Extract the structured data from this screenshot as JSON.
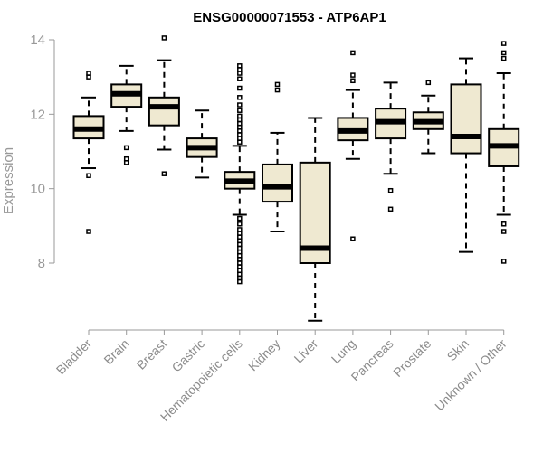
{
  "chart_data": {
    "type": "boxplot",
    "title": "ENSG00000071553 - ATP6AP1",
    "xlabel": "",
    "ylabel": "Expression",
    "ylim": [
      6.2,
      14.3
    ],
    "yticks": [
      8,
      10,
      12,
      14
    ],
    "box_fill": "#efe9d1",
    "box_stroke": "#000000",
    "categories": [
      "Bladder",
      "Brain",
      "Breast",
      "Gastric",
      "Hematopoietic cells",
      "Kidney",
      "Liver",
      "Lung",
      "Pancreas",
      "Prostate",
      "Skin",
      "Unknown / Other"
    ],
    "boxes": [
      {
        "q1": 11.35,
        "median": 11.6,
        "q3": 11.95,
        "whisker_low": 10.55,
        "whisker_high": 12.45,
        "outliers": [
          13.1,
          13.0,
          10.35,
          8.85
        ]
      },
      {
        "q1": 12.2,
        "median": 12.55,
        "q3": 12.8,
        "whisker_low": 11.55,
        "whisker_high": 13.3,
        "outliers": [
          11.1,
          10.8,
          10.7
        ]
      },
      {
        "q1": 11.7,
        "median": 12.2,
        "q3": 12.45,
        "whisker_low": 11.05,
        "whisker_high": 13.45,
        "outliers": [
          14.05,
          10.4
        ]
      },
      {
        "q1": 10.85,
        "median": 11.1,
        "q3": 11.35,
        "whisker_low": 10.3,
        "whisker_high": 12.1,
        "outliers": []
      },
      {
        "q1": 10.0,
        "median": 10.2,
        "q3": 10.45,
        "whisker_low": 9.3,
        "whisker_high": 11.15,
        "outliers": [
          13.3,
          13.2,
          13.1,
          12.95,
          12.7,
          12.45,
          12.25,
          12.1,
          11.95,
          11.85,
          11.75,
          11.65,
          11.55,
          11.45,
          11.35,
          11.25,
          9.2,
          9.05,
          8.9,
          8.8,
          8.7,
          8.6,
          8.5,
          8.4,
          8.3,
          8.2,
          8.1,
          8.0,
          7.9,
          7.8,
          7.7,
          7.6,
          7.5
        ]
      },
      {
        "q1": 9.65,
        "median": 10.05,
        "q3": 10.65,
        "whisker_low": 8.85,
        "whisker_high": 11.5,
        "outliers": [
          12.8,
          12.65
        ]
      },
      {
        "q1": 8.0,
        "median": 8.4,
        "q3": 10.7,
        "whisker_low": 6.45,
        "whisker_high": 11.9,
        "outliers": []
      },
      {
        "q1": 11.3,
        "median": 11.55,
        "q3": 11.9,
        "whisker_low": 10.8,
        "whisker_high": 12.65,
        "outliers": [
          13.65,
          13.05,
          12.9,
          8.65
        ]
      },
      {
        "q1": 11.35,
        "median": 11.8,
        "q3": 12.15,
        "whisker_low": 10.4,
        "whisker_high": 12.85,
        "outliers": [
          9.95,
          9.45
        ]
      },
      {
        "q1": 11.6,
        "median": 11.8,
        "q3": 12.05,
        "whisker_low": 10.95,
        "whisker_high": 12.5,
        "outliers": [
          12.85
        ]
      },
      {
        "q1": 10.95,
        "median": 11.4,
        "q3": 12.8,
        "whisker_low": 8.3,
        "whisker_high": 13.5,
        "outliers": []
      },
      {
        "q1": 10.6,
        "median": 11.15,
        "q3": 11.6,
        "whisker_low": 9.3,
        "whisker_high": 13.1,
        "outliers": [
          13.9,
          13.65,
          13.5,
          9.05,
          8.85,
          8.05
        ]
      }
    ]
  }
}
